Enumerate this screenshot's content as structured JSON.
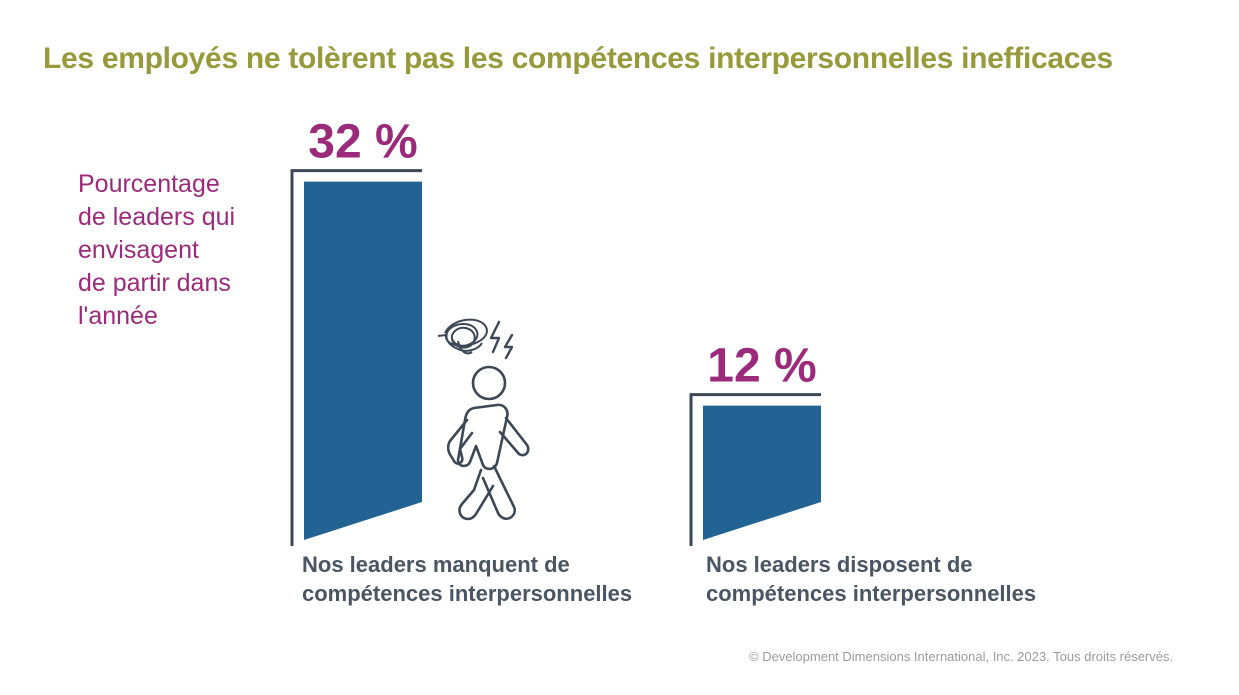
{
  "title": "Les employés ne tolèrent pas les compétences interpersonnelles inefficaces",
  "side_label": [
    "Pourcentage",
    "de leaders qui",
    "envisagent",
    "de partir dans",
    "l'année"
  ],
  "chart_data": {
    "type": "bar",
    "categories": [
      "Nos leaders manquent de compétences interpersonnelles",
      "Nos leaders disposent de compétences interpersonnelles"
    ],
    "category_lines": [
      [
        "Nos leaders manquent de",
        "compétences interpersonnelles"
      ],
      [
        "Nos leaders disposent de",
        "compétences interpersonnelles"
      ]
    ],
    "values": [
      32,
      12
    ],
    "value_labels": [
      "32 %",
      "12 %"
    ],
    "unit": "%"
  },
  "icons": [
    "person-walking-away-icon",
    "scribble-frustration-icon",
    "lightning-frustration-icon",
    "doorway-frame-icon"
  ],
  "colors": {
    "title": "#97993a",
    "side_label": "#9c2a7a",
    "value_label": "#9c2a7a",
    "bar": "#236394",
    "frame": "#3c4856",
    "category_label": "#4a5563",
    "copyright": "#9b9b9b"
  },
  "copyright": "© Development Dimensions International, Inc. 2023. Tous droits réservés."
}
